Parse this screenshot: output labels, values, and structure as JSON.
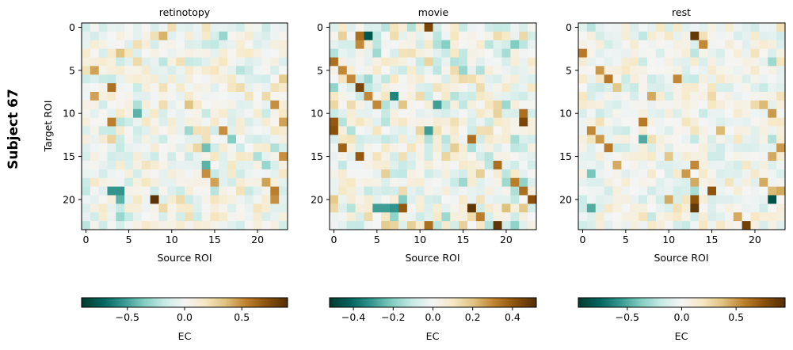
{
  "figure": {
    "row_label": "Subject 67"
  },
  "colors": {
    "cmap_stops": [
      "#003c30",
      "#01665e",
      "#35978f",
      "#80cdc1",
      "#c7eae5",
      "#f5f5f5",
      "#f6e8c3",
      "#dfc27d",
      "#bf812d",
      "#8c510a",
      "#543005"
    ]
  },
  "chart_data": [
    {
      "type": "heatmap",
      "title": "retinotopy",
      "xlabel": "Source ROI",
      "ylabel": "Target ROI",
      "x_ticks": [
        0,
        5,
        10,
        15,
        20
      ],
      "y_ticks": [
        0,
        5,
        10,
        15,
        20
      ],
      "n": 24,
      "vmin": -0.9,
      "vmax": 0.9,
      "seed": 11,
      "noise": 0.22,
      "strong_cells": [
        [
          20,
          8,
          0.88
        ],
        [
          19,
          3,
          -0.55
        ],
        [
          19,
          4,
          -0.55
        ],
        [
          10,
          6,
          -0.45
        ],
        [
          7,
          3,
          0.6
        ],
        [
          11,
          3,
          0.55
        ],
        [
          12,
          16,
          0.5
        ],
        [
          17,
          14,
          0.5
        ],
        [
          16,
          14,
          -0.45
        ],
        [
          14,
          14,
          -0.4
        ],
        [
          18,
          15,
          0.45
        ],
        [
          20,
          22,
          0.5
        ],
        [
          19,
          22,
          0.55
        ],
        [
          8,
          1,
          0.45
        ],
        [
          9,
          22,
          0.5
        ],
        [
          5,
          1,
          0.45
        ],
        [
          11,
          23,
          0.45
        ],
        [
          15,
          23,
          0.5
        ],
        [
          18,
          21,
          0.45
        ],
        [
          13,
          17,
          -0.35
        ],
        [
          20,
          4,
          -0.45
        ],
        [
          16,
          21,
          -0.3
        ],
        [
          22,
          4,
          -0.3
        ],
        [
          3,
          4,
          0.35
        ],
        [
          1,
          9,
          0.4
        ],
        [
          9,
          12,
          0.35
        ]
      ],
      "colorbar": {
        "ticks": [
          -0.5,
          0.0,
          0.5
        ],
        "tick_labels": [
          "−0.5",
          "0.0",
          "0.5"
        ],
        "label": "EC"
      }
    },
    {
      "type": "heatmap",
      "title": "movie",
      "xlabel": "Source ROI",
      "ylabel": "",
      "x_ticks": [
        0,
        5,
        10,
        15,
        20
      ],
      "y_ticks": [
        0,
        5,
        10,
        15,
        20
      ],
      "n": 24,
      "vmin": -0.52,
      "vmax": 0.52,
      "seed": 23,
      "noise": 0.16,
      "strong_cells": [
        [
          0,
          11,
          0.45
        ],
        [
          1,
          4,
          -0.45
        ],
        [
          1,
          3,
          0.35
        ],
        [
          2,
          3,
          0.3
        ],
        [
          4,
          0,
          0.35
        ],
        [
          5,
          1,
          0.3
        ],
        [
          6,
          2,
          0.3
        ],
        [
          7,
          3,
          0.45
        ],
        [
          8,
          4,
          0.3
        ],
        [
          8,
          7,
          -0.35
        ],
        [
          9,
          12,
          -0.3
        ],
        [
          10,
          22,
          0.35
        ],
        [
          11,
          22,
          0.45
        ],
        [
          12,
          0,
          0.42
        ],
        [
          11,
          0,
          0.4
        ],
        [
          13,
          16,
          0.35
        ],
        [
          14,
          1,
          0.38
        ],
        [
          15,
          3,
          0.4
        ],
        [
          16,
          19,
          0.35
        ],
        [
          18,
          21,
          0.32
        ],
        [
          19,
          22,
          0.35
        ],
        [
          20,
          23,
          0.42
        ],
        [
          21,
          8,
          0.4
        ],
        [
          21,
          16,
          0.5
        ],
        [
          22,
          17,
          0.32
        ],
        [
          23,
          19,
          0.5
        ],
        [
          23,
          11,
          0.35
        ],
        [
          21,
          5,
          -0.3
        ],
        [
          21,
          6,
          -0.3
        ],
        [
          21,
          7,
          -0.32
        ],
        [
          12,
          11,
          -0.3
        ],
        [
          9,
          5,
          0.3
        ],
        [
          2,
          13,
          -0.2
        ],
        [
          3,
          20,
          -0.15
        ]
      ],
      "colorbar": {
        "ticks": [
          -0.4,
          -0.2,
          0.0,
          0.2,
          0.4
        ],
        "tick_labels": [
          "−0.4",
          "−0.2",
          "0.0",
          "0.2",
          "0.4"
        ],
        "label": "EC"
      }
    },
    {
      "type": "heatmap",
      "title": "rest",
      "xlabel": "Source ROI",
      "ylabel": "",
      "x_ticks": [
        0,
        5,
        10,
        15,
        20
      ],
      "y_ticks": [
        0,
        5,
        10,
        15,
        20
      ],
      "n": 24,
      "vmin": -0.95,
      "vmax": 0.95,
      "seed": 37,
      "noise": 0.2,
      "strong_cells": [
        [
          1,
          13,
          0.9
        ],
        [
          2,
          14,
          0.55
        ],
        [
          3,
          0,
          0.6
        ],
        [
          5,
          2,
          0.5
        ],
        [
          6,
          3,
          0.6
        ],
        [
          7,
          4,
          0.35
        ],
        [
          6,
          11,
          0.55
        ],
        [
          8,
          8,
          0.45
        ],
        [
          9,
          21,
          0.4
        ],
        [
          10,
          22,
          0.5
        ],
        [
          11,
          7,
          0.6
        ],
        [
          12,
          1,
          0.55
        ],
        [
          13,
          2,
          0.5
        ],
        [
          14,
          3,
          0.6
        ],
        [
          14,
          23,
          0.5
        ],
        [
          15,
          22,
          0.45
        ],
        [
          16,
          4,
          0.45
        ],
        [
          16,
          13,
          0.55
        ],
        [
          17,
          12,
          0.5
        ],
        [
          17,
          1,
          -0.4
        ],
        [
          18,
          13,
          0.45
        ],
        [
          18,
          21,
          0.45
        ],
        [
          19,
          15,
          0.75
        ],
        [
          19,
          22,
          0.4
        ],
        [
          19,
          23,
          0.45
        ],
        [
          20,
          13,
          0.75
        ],
        [
          21,
          13,
          0.9
        ],
        [
          20,
          22,
          -0.85
        ],
        [
          21,
          1,
          -0.5
        ],
        [
          20,
          10,
          0.45
        ],
        [
          23,
          19,
          0.85
        ],
        [
          22,
          18,
          0.45
        ],
        [
          13,
          7,
          -0.5
        ],
        [
          15,
          10,
          0.35
        ],
        [
          12,
          16,
          0.4
        ],
        [
          4,
          22,
          -0.3
        ]
      ],
      "colorbar": {
        "ticks": [
          -0.5,
          0.0,
          0.5
        ],
        "tick_labels": [
          "−0.5",
          "0.0",
          "0.5"
        ],
        "label": "EC"
      }
    }
  ]
}
